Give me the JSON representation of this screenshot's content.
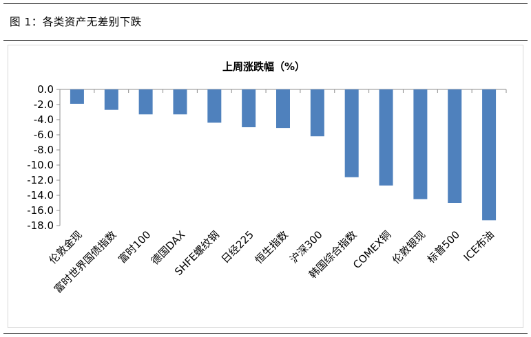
{
  "figure_title": "图 1：各类资产无差别下跌",
  "chart_data": {
    "type": "bar",
    "title": "上周涨跌幅（%）",
    "xlabel": "",
    "ylabel": "",
    "categories": [
      "伦敦金现",
      "富时世界国债指数",
      "富时100",
      "德国DAX",
      "SHFE螺纹钢",
      "日经225",
      "恒生指数",
      "沪深300",
      "韩国综合指数",
      "COMEX铜",
      "伦敦银现",
      "标普500",
      "ICE布油"
    ],
    "values": [
      -1.9,
      -2.7,
      -3.3,
      -3.3,
      -4.4,
      -5.0,
      -5.1,
      -6.2,
      -11.6,
      -12.7,
      -14.5,
      -15.0,
      -17.3
    ],
    "ylim": [
      -18,
      0
    ],
    "yticks": [
      "0.0",
      "-2.0",
      "-4.0",
      "-6.0",
      "-8.0",
      "-10.0",
      "-12.0",
      "-14.0",
      "-16.0",
      "-18.0"
    ],
    "grid": false,
    "legend": "none",
    "bar_color": "#4f81bd"
  }
}
